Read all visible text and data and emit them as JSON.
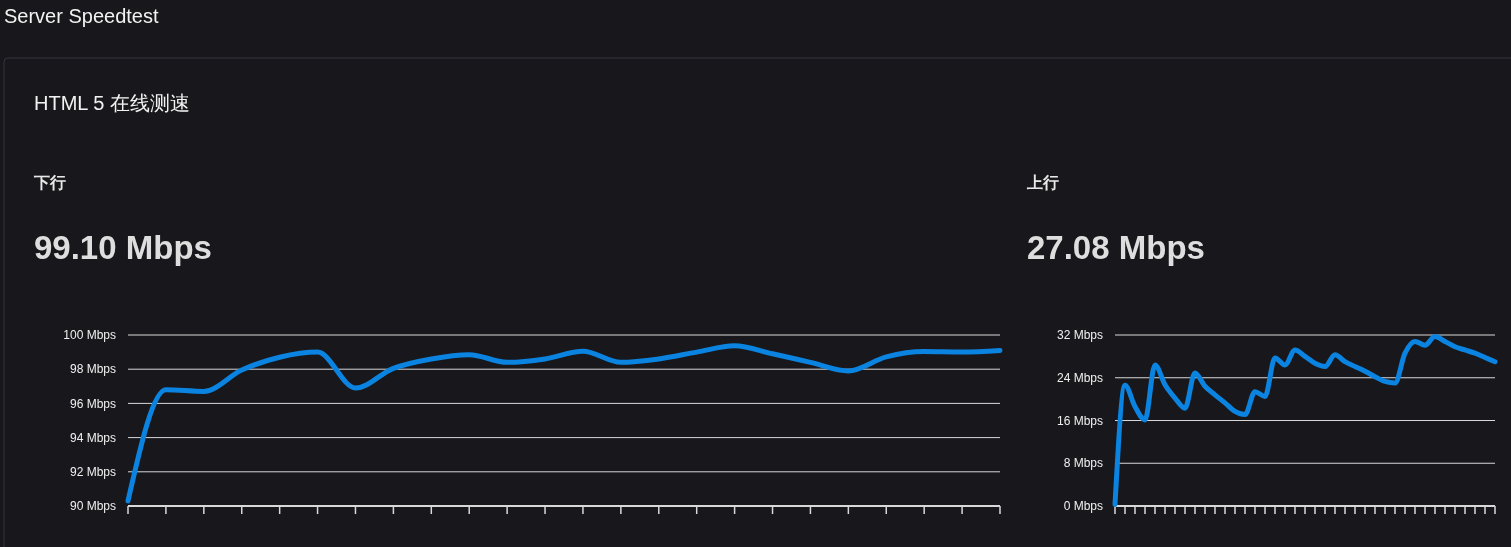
{
  "chart_data": [
    {
      "type": "line",
      "title": "下行",
      "subtitle": "99.10 Mbps",
      "annotations": [
        "Server Speedtest",
        "HTML 5 在线测速"
      ],
      "categories": [
        null,
        null,
        null,
        null,
        null,
        null,
        null,
        null,
        null,
        null,
        null,
        null,
        null,
        null,
        null,
        null,
        null,
        null,
        null,
        null,
        null,
        null,
        null,
        null
      ],
      "series": [
        {
          "color": "#0a84e0",
          "values": [
            90.3,
            96.8,
            96.7,
            97.95,
            98.7,
            99.0,
            96.9,
            98.05,
            98.6,
            98.85,
            98.4,
            98.6,
            99.05,
            98.4,
            98.6,
            99.0,
            99.37,
            98.9,
            98.4,
            97.9,
            98.72,
            99.03,
            99.0,
            99.1
          ]
        }
      ],
      "ylim": [
        90,
        100
      ],
      "yticks": [
        {
          "value": 90,
          "label": "90 Mbps"
        },
        {
          "value": 92,
          "label": "92 Mbps"
        },
        {
          "value": 94,
          "label": "94 Mbps"
        },
        {
          "value": 96,
          "label": "96 Mbps"
        },
        {
          "value": 98,
          "label": "98 Mbps"
        },
        {
          "value": 100,
          "label": "100 Mbps"
        }
      ],
      "grid": "y",
      "marker": "none",
      "line_style": "solid"
    },
    {
      "type": "line",
      "title": "上行",
      "subtitle": "27.08 Mbps",
      "categories": [
        null,
        null,
        null,
        null,
        null,
        null,
        null,
        null,
        null,
        null,
        null,
        null,
        null,
        null,
        null,
        null,
        null,
        null,
        null,
        null,
        null,
        null,
        null,
        null,
        null,
        null,
        null,
        null,
        null,
        null,
        null,
        null,
        null,
        null,
        null,
        null,
        null,
        null,
        null
      ],
      "series": [
        {
          "color": "#0a84e0",
          "values": [
            0.3,
            22.6,
            18.6,
            16.1,
            26.4,
            22.7,
            20.2,
            18.3,
            24.9,
            22.4,
            20.8,
            19.3,
            17.7,
            17.1,
            21.4,
            20.5,
            27.7,
            26.4,
            29.2,
            28.0,
            26.7,
            26.1,
            28.3,
            27.0,
            26.1,
            25.2,
            24.2,
            23.3,
            23.0,
            28.6,
            30.8,
            30.1,
            31.7,
            30.8,
            29.8,
            29.2,
            28.6,
            27.8,
            27.0
          ]
        }
      ],
      "ylim": [
        0,
        32
      ],
      "yticks": [
        {
          "value": 0,
          "label": "0 Mbps"
        },
        {
          "value": 8,
          "label": "8 Mbps"
        },
        {
          "value": 16,
          "label": "16 Mbps"
        },
        {
          "value": 24,
          "label": "24 Mbps"
        },
        {
          "value": 32,
          "label": "32 Mbps"
        }
      ],
      "grid": "y",
      "marker": "none",
      "line_style": "solid"
    }
  ]
}
